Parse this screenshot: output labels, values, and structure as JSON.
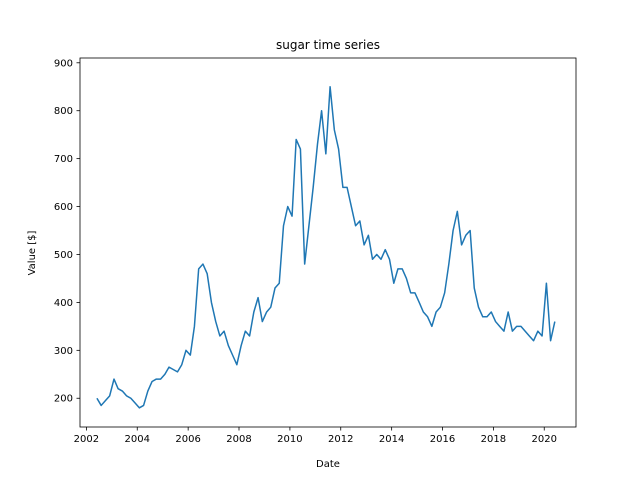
{
  "chart_data": {
    "type": "line",
    "title": "sugar time series",
    "xlabel": "Date",
    "ylabel": "Value [$]",
    "xlim": [
      "2001-10-01",
      "2021-04-01"
    ],
    "ylim": [
      140,
      910
    ],
    "xticks": [
      "2002",
      "2004",
      "2006",
      "2008",
      "2010",
      "2012",
      "2014",
      "2016",
      "2018",
      "2020"
    ],
    "yticks": [
      200,
      300,
      400,
      500,
      600,
      700,
      800,
      900
    ],
    "grid": false,
    "legend": "none",
    "series": [
      {
        "color": "#1f77b4",
        "x": [
          "2002-06-01",
          "2002-08-01",
          "2002-10-01",
          "2002-12-01",
          "2003-02-01",
          "2003-04-01",
          "2003-06-01",
          "2003-08-01",
          "2003-10-01",
          "2003-12-01",
          "2004-02-01",
          "2004-04-01",
          "2004-06-01",
          "2004-08-01",
          "2004-10-01",
          "2004-12-01",
          "2005-02-01",
          "2005-04-01",
          "2005-06-01",
          "2005-08-01",
          "2005-10-01",
          "2005-12-01",
          "2006-02-01",
          "2006-04-01",
          "2006-06-01",
          "2006-08-01",
          "2006-10-01",
          "2006-12-01",
          "2007-02-01",
          "2007-04-01",
          "2007-06-01",
          "2007-08-01",
          "2007-10-01",
          "2007-12-01",
          "2008-02-01",
          "2008-04-01",
          "2008-06-01",
          "2008-08-01",
          "2008-10-01",
          "2008-12-01",
          "2009-02-01",
          "2009-04-01",
          "2009-06-01",
          "2009-08-01",
          "2009-10-01",
          "2009-12-01",
          "2010-02-01",
          "2010-04-01",
          "2010-06-01",
          "2010-08-01",
          "2010-10-01",
          "2010-12-01",
          "2011-02-01",
          "2011-04-01",
          "2011-06-01",
          "2011-08-01",
          "2011-10-01",
          "2011-12-01",
          "2012-02-01",
          "2012-04-01",
          "2012-06-01",
          "2012-08-01",
          "2012-10-01",
          "2012-12-01",
          "2013-02-01",
          "2013-04-01",
          "2013-06-01",
          "2013-08-01",
          "2013-10-01",
          "2013-12-01",
          "2014-02-01",
          "2014-04-01",
          "2014-06-01",
          "2014-08-01",
          "2014-10-01",
          "2014-12-01",
          "2015-02-01",
          "2015-04-01",
          "2015-06-01",
          "2015-08-01",
          "2015-10-01",
          "2015-12-01",
          "2016-02-01",
          "2016-04-01",
          "2016-06-01",
          "2016-08-01",
          "2016-10-01",
          "2016-12-01",
          "2017-02-01",
          "2017-04-01",
          "2017-06-01",
          "2017-08-01",
          "2017-10-01",
          "2017-12-01",
          "2018-02-01",
          "2018-04-01",
          "2018-06-01",
          "2018-08-01",
          "2018-10-01",
          "2018-12-01",
          "2019-02-01",
          "2019-04-01",
          "2019-06-01",
          "2019-08-01",
          "2019-10-01",
          "2019-12-01",
          "2020-02-01",
          "2020-04-01",
          "2020-06-01"
        ],
        "y": [
          200,
          185,
          195,
          205,
          240,
          220,
          215,
          205,
          200,
          190,
          180,
          185,
          215,
          235,
          240,
          240,
          250,
          265,
          260,
          255,
          270,
          300,
          290,
          350,
          470,
          480,
          460,
          400,
          360,
          330,
          340,
          310,
          290,
          270,
          310,
          340,
          330,
          380,
          410,
          360,
          380,
          390,
          430,
          440,
          560,
          600,
          580,
          740,
          720,
          480,
          560,
          640,
          730,
          800,
          710,
          850,
          760,
          720,
          640,
          640,
          600,
          560,
          570,
          520,
          540,
          490,
          500,
          490,
          510,
          490,
          440,
          470,
          470,
          450,
          420,
          420,
          400,
          380,
          370,
          350,
          380,
          390,
          420,
          480,
          550,
          590,
          520,
          540,
          550,
          430,
          390,
          370,
          370,
          380,
          360,
          350,
          340,
          380,
          340,
          350,
          350,
          340,
          330,
          320,
          340,
          330,
          440,
          320,
          360
        ]
      }
    ]
  }
}
